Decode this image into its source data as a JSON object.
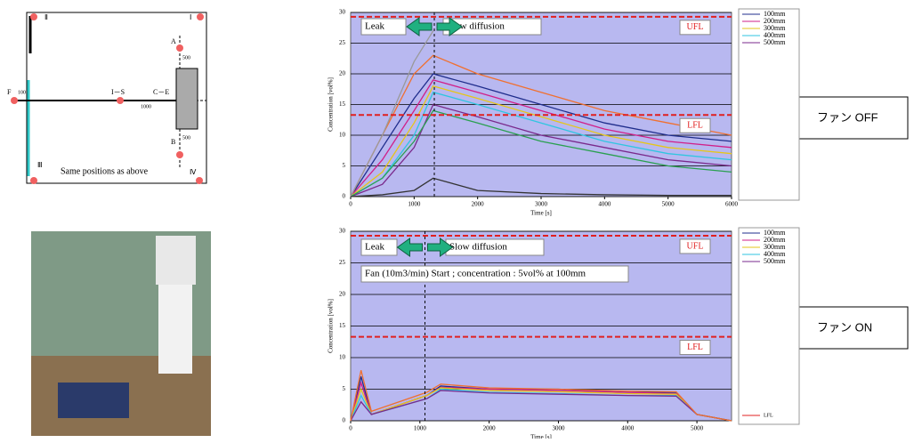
{
  "diagram": {
    "labels": [
      "Ⅱ",
      "Ⅰ",
      "A",
      "500",
      "F",
      "100",
      "I－S",
      "C－E",
      "1000",
      "B",
      "500",
      "Ⅲ",
      "Ⅳ",
      "Same positions as above"
    ]
  },
  "side_labels": [
    "ファン OFF",
    "ファン ON"
  ],
  "chart_data": [
    {
      "type": "line",
      "x_label": "Time [s]",
      "y_label": "Concentration [vol%]",
      "annotations": [
        "Leak",
        "Slow diffusion"
      ],
      "reference_lines": [
        {
          "label": "UFL",
          "value": 29.3
        },
        {
          "label": "LFL",
          "value": 13.3
        }
      ],
      "vline": 1318,
      "x": [
        0,
        500,
        1000,
        1300,
        2000,
        3000,
        4000,
        5000,
        6000
      ],
      "series": [
        {
          "name": "100mm",
          "color": "#1f2d8c",
          "values": [
            0,
            8,
            16,
            20,
            18,
            15,
            12,
            10,
            9
          ]
        },
        {
          "name": "200mm",
          "color": "#d01f8a",
          "values": [
            0,
            6,
            14,
            19,
            17,
            14,
            11,
            9,
            8
          ]
        },
        {
          "name": "300mm",
          "color": "#e6c619",
          "values": [
            0,
            4,
            12,
            18,
            16,
            13,
            10,
            8,
            7
          ]
        },
        {
          "name": "400mm",
          "color": "#2fc6e0",
          "values": [
            0,
            3,
            10,
            17,
            15,
            12,
            9,
            7,
            6
          ]
        },
        {
          "name": "500mm",
          "color": "#7a2a8c",
          "values": [
            0,
            2,
            8,
            15,
            13,
            10,
            8,
            6,
            5
          ]
        },
        {
          "color": "#f07030",
          "values": [
            0,
            10,
            20,
            23,
            20,
            17,
            14,
            12,
            10
          ]
        },
        {
          "color": "#2aa050",
          "values": [
            0,
            3,
            9,
            14,
            12,
            9,
            7,
            5,
            4
          ]
        },
        {
          "color": "#9a9a9a",
          "values": [
            0,
            10,
            22,
            27,
            null,
            null,
            null,
            null,
            null
          ]
        },
        {
          "color": "#333333",
          "values": [
            0,
            0.3,
            1,
            3,
            1,
            0.5,
            0.3,
            0.2,
            0.2
          ]
        }
      ],
      "xlim": [
        0,
        6000
      ],
      "xticks": [
        0,
        1000,
        2000,
        3000,
        4000,
        5000,
        6000
      ],
      "ylim": [
        0,
        30
      ],
      "yticks": [
        0,
        5,
        10,
        15,
        20,
        25,
        30
      ],
      "grid": true
    },
    {
      "type": "line",
      "x_label": "Time [s]",
      "y_label": "Concentration [vol%]",
      "annotations": [
        "Leak",
        "Slow diffusion",
        "Fan (10m3/min) Start ; concentration : 5vol% at 100mm"
      ],
      "reference_lines": [
        {
          "label": "UFL",
          "value": 29.3
        },
        {
          "label": "LFL",
          "value": 13.3,
          "in_legend": true
        }
      ],
      "vline": 1073,
      "x": [
        0,
        150,
        300,
        1100,
        1300,
        2000,
        3000,
        4000,
        4700,
        5000,
        5500
      ],
      "series": [
        {
          "name": "100mm",
          "color": "#1f2d8c",
          "values": [
            0,
            7,
            1,
            4,
            5.5,
            5,
            5,
            4.5,
            4.5,
            1,
            0
          ]
        },
        {
          "name": "200mm",
          "color": "#d01f8a",
          "values": [
            0,
            6,
            1,
            4,
            5.3,
            5,
            4.8,
            4.5,
            4.3,
            1,
            0
          ]
        },
        {
          "name": "300mm",
          "color": "#e6c619",
          "values": [
            0,
            5,
            1,
            4,
            5.2,
            4.8,
            4.6,
            4.3,
            4.2,
            1,
            0
          ]
        },
        {
          "name": "400mm",
          "color": "#2fc6e0",
          "values": [
            0,
            4,
            1,
            3.5,
            5,
            4.5,
            4.3,
            4,
            4,
            1,
            0
          ]
        },
        {
          "name": "500mm",
          "color": "#7a2a8c",
          "values": [
            0,
            3,
            1,
            3.5,
            4.8,
            4.4,
            4.2,
            4,
            3.9,
            1,
            0
          ]
        },
        {
          "color": "#f07030",
          "values": [
            0,
            8,
            1.5,
            4.5,
            5.8,
            5.2,
            5,
            4.7,
            4.6,
            1,
            0
          ]
        }
      ],
      "xlim": [
        0,
        5500
      ],
      "xticks": [
        0,
        1000,
        2000,
        3000,
        4000,
        5000
      ],
      "ylim": [
        0,
        30
      ],
      "yticks": [
        0,
        5,
        10,
        15,
        20,
        25,
        30
      ],
      "grid": true
    }
  ]
}
